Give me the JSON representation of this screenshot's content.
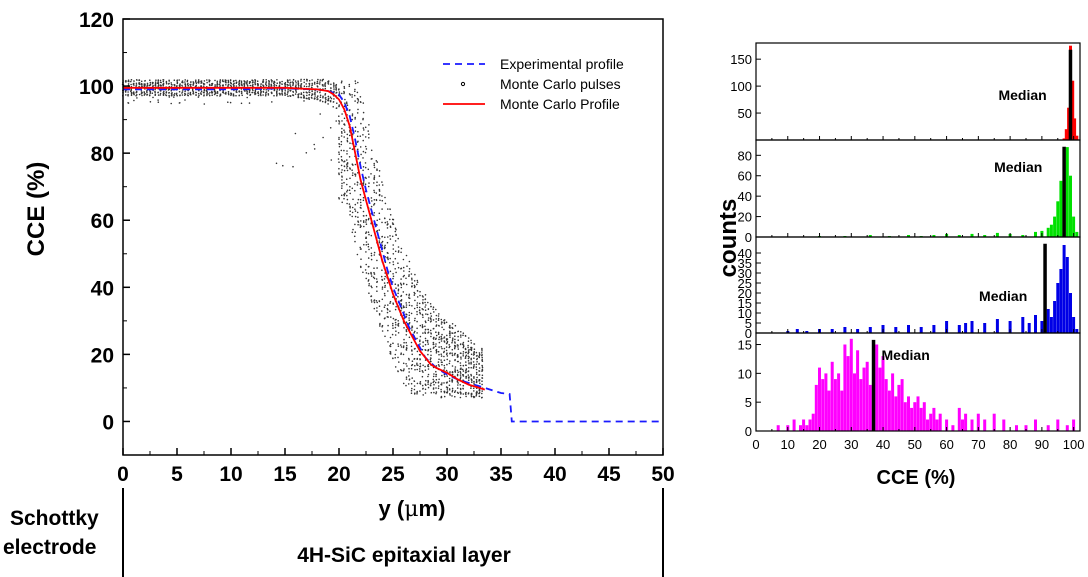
{
  "chart_data": [
    {
      "type": "line",
      "xlabel": "y (μm)",
      "ylabel": "CCE (%)",
      "xlim": [
        0,
        50
      ],
      "ylim": [
        -10,
        120
      ],
      "x_ticks": [
        0,
        5,
        10,
        15,
        20,
        25,
        30,
        35,
        40,
        45,
        50
      ],
      "y_ticks": [
        0,
        20,
        40,
        60,
        80,
        100,
        120
      ],
      "grid": false,
      "legend_position": "top-right",
      "series": [
        {
          "name": "Experimental profile",
          "style": "dashed",
          "color": "#1a1aff",
          "x": [
            0,
            5,
            10,
            15,
            18,
            19,
            20,
            20.5,
            21,
            21.5,
            22,
            22.5,
            23,
            23.5,
            24,
            24.5,
            25,
            25.5,
            26,
            26.5,
            27,
            27.5,
            28,
            29,
            30,
            31,
            32,
            33,
            34,
            35,
            35.5,
            35.8,
            36,
            40,
            45,
            50
          ],
          "y": [
            99,
            99,
            99,
            99.3,
            99,
            98.5,
            97.5,
            95,
            91,
            84,
            76,
            69,
            63,
            57,
            51,
            45,
            40,
            36,
            32,
            28,
            25,
            22,
            19,
            16,
            14,
            12.5,
            11.5,
            10.5,
            9.5,
            8.5,
            8.3,
            8.2,
            0,
            0,
            0,
            0
          ]
        },
        {
          "name": "Monte Carlo pulses",
          "style": "scatter",
          "color": "#000000"
        },
        {
          "name": "Monte Carlo Profile",
          "style": "solid",
          "color": "#ff0000",
          "x": [
            0,
            5,
            10,
            15,
            18,
            19,
            19.5,
            20,
            20.5,
            21,
            21.5,
            22,
            22.5,
            23,
            23.5,
            24,
            24.5,
            25,
            25.5,
            26,
            26.5,
            27,
            27.5,
            28,
            28.5,
            29,
            30,
            31,
            32,
            33,
            33.5
          ],
          "y": [
            99.5,
            99.5,
            99.5,
            99.5,
            99,
            98.5,
            97.5,
            96,
            93,
            88,
            80,
            72,
            66,
            60,
            54,
            48,
            43,
            38,
            34,
            30,
            27,
            24,
            21,
            19,
            17,
            16,
            14.5,
            12.5,
            11,
            10,
            9.5
          ]
        }
      ]
    },
    {
      "type": "bar",
      "ylabel": "counts",
      "xlabel": "CCE (%)",
      "xlim": [
        0,
        102
      ],
      "x_ticks": [
        0,
        10,
        20,
        30,
        40,
        50,
        60,
        70,
        80,
        90,
        100
      ],
      "median_label": "Median",
      "panels": [
        {
          "color": "#ff0000",
          "ylim": [
            0,
            180
          ],
          "y_ticks": [
            50,
            100,
            150
          ],
          "median": 99,
          "bins": [
            [
              97,
              3
            ],
            [
              97.7,
              20
            ],
            [
              98.4,
              60
            ],
            [
              99,
              175
            ],
            [
              99.7,
              110
            ],
            [
              100.3,
              40
            ],
            [
              101,
              8
            ]
          ]
        },
        {
          "color": "#00e000",
          "ylim": [
            0,
            95
          ],
          "y_ticks": [
            0,
            20,
            40,
            60,
            80
          ],
          "median": 97,
          "bins": [
            [
              20,
              1
            ],
            [
              28,
              1
            ],
            [
              36,
              2
            ],
            [
              42,
              1
            ],
            [
              48,
              2
            ],
            [
              52,
              1
            ],
            [
              56,
              2
            ],
            [
              60,
              3
            ],
            [
              64,
              2
            ],
            [
              68,
              3
            ],
            [
              72,
              2
            ],
            [
              76,
              4
            ],
            [
              80,
              3
            ],
            [
              84,
              2
            ],
            [
              88,
              5
            ],
            [
              90,
              6
            ],
            [
              92,
              9
            ],
            [
              93,
              12
            ],
            [
              94,
              20
            ],
            [
              95,
              35
            ],
            [
              96,
              55
            ],
            [
              97,
              70
            ],
            [
              98,
              88
            ],
            [
              99,
              60
            ],
            [
              100,
              20
            ],
            [
              101,
              5
            ]
          ]
        },
        {
          "color": "#0000e6",
          "ylim": [
            0,
            48
          ],
          "y_ticks": [
            0,
            5,
            10,
            15,
            20,
            25,
            30,
            35,
            40
          ],
          "median": 91,
          "bins": [
            [
              10,
              1
            ],
            [
              13,
              2
            ],
            [
              16,
              1
            ],
            [
              20,
              2
            ],
            [
              24,
              2
            ],
            [
              28,
              3
            ],
            [
              32,
              2
            ],
            [
              36,
              3
            ],
            [
              40,
              4
            ],
            [
              44,
              3
            ],
            [
              48,
              4
            ],
            [
              52,
              3
            ],
            [
              56,
              4
            ],
            [
              60,
              6
            ],
            [
              64,
              4
            ],
            [
              66,
              5
            ],
            [
              68,
              6
            ],
            [
              72,
              5
            ],
            [
              76,
              7
            ],
            [
              80,
              6
            ],
            [
              84,
              8
            ],
            [
              86,
              5
            ],
            [
              88,
              9
            ],
            [
              90,
              6
            ],
            [
              92,
              12
            ],
            [
              93,
              8
            ],
            [
              94,
              16
            ],
            [
              95,
              25
            ],
            [
              96,
              32
            ],
            [
              97,
              44
            ],
            [
              98,
              38
            ],
            [
              99,
              20
            ],
            [
              100,
              8
            ],
            [
              101,
              2
            ]
          ]
        },
        {
          "color": "#ff00ff",
          "ylim": [
            0,
            17
          ],
          "y_ticks": [
            0,
            5,
            10,
            15
          ],
          "median": 37,
          "bins": [
            [
              7,
              1
            ],
            [
              10,
              1
            ],
            [
              12,
              2
            ],
            [
              14,
              1
            ],
            [
              15,
              2
            ],
            [
              16,
              1
            ],
            [
              17,
              2
            ],
            [
              18,
              3
            ],
            [
              19,
              8
            ],
            [
              20,
              11
            ],
            [
              21,
              9
            ],
            [
              22,
              10
            ],
            [
              23,
              7
            ],
            [
              24,
              12
            ],
            [
              25,
              9
            ],
            [
              26,
              10
            ],
            [
              27,
              7
            ],
            [
              28,
              15
            ],
            [
              29,
              13
            ],
            [
              30,
              16
            ],
            [
              31,
              10
            ],
            [
              32,
              14
            ],
            [
              33,
              9
            ],
            [
              34,
              11
            ],
            [
              35,
              12
            ],
            [
              36,
              8
            ],
            [
              37,
              10
            ],
            [
              38,
              15
            ],
            [
              39,
              11
            ],
            [
              40,
              13
            ],
            [
              41,
              9
            ],
            [
              42,
              7
            ],
            [
              43,
              10
            ],
            [
              44,
              6
            ],
            [
              45,
              8
            ],
            [
              46,
              9
            ],
            [
              47,
              5
            ],
            [
              48,
              6
            ],
            [
              49,
              4
            ],
            [
              50,
              5
            ],
            [
              51,
              6
            ],
            [
              52,
              4
            ],
            [
              53,
              5
            ],
            [
              54,
              2
            ],
            [
              55,
              3
            ],
            [
              56,
              4
            ],
            [
              57,
              2
            ],
            [
              58,
              3
            ],
            [
              60,
              2
            ],
            [
              62,
              1
            ],
            [
              64,
              4
            ],
            [
              65,
              2
            ],
            [
              66,
              3
            ],
            [
              68,
              2
            ],
            [
              70,
              3
            ],
            [
              72,
              2
            ],
            [
              75,
              3
            ],
            [
              78,
              2
            ],
            [
              82,
              1
            ],
            [
              85,
              1
            ],
            [
              88,
              2
            ],
            [
              92,
              1
            ],
            [
              95,
              2
            ],
            [
              98,
              1
            ],
            [
              100,
              2
            ]
          ]
        }
      ]
    }
  ],
  "annotations": {
    "schottky_line1": "Schottky",
    "schottky_line2": "electrode",
    "epi_layer": "4H-SiC epitaxial layer",
    "xlabel_prefix": "y (",
    "xlabel_mu": "μ",
    "xlabel_suffix": "m)"
  }
}
